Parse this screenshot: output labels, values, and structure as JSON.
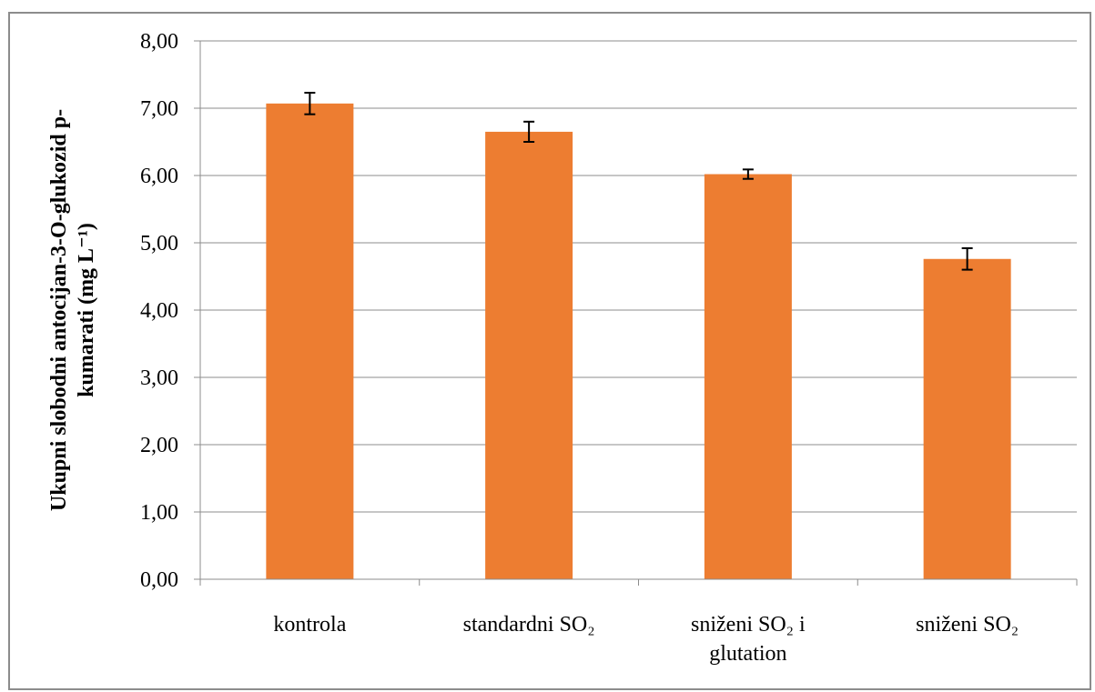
{
  "chart_data": {
    "type": "bar",
    "categories": [
      [
        "kontrola"
      ],
      [
        "standardni SO₂"
      ],
      [
        "sniženi SO₂ i",
        "glutation"
      ],
      [
        "sniženi SO₂"
      ]
    ],
    "values": [
      7.07,
      6.65,
      6.02,
      4.76
    ],
    "errors": [
      0.16,
      0.15,
      0.07,
      0.16
    ],
    "ylabel_lines": [
      "Ukupni slobodni antocijan-3-O-glukozid p-",
      "kumarati (mg L⁻¹)"
    ],
    "xlabel": "",
    "ylim": [
      0,
      8
    ],
    "yticks": [
      "0,00",
      "1,00",
      "2,00",
      "3,00",
      "4,00",
      "5,00",
      "6,00",
      "7,00",
      "8,00"
    ],
    "grid": true,
    "legend": "none",
    "bar_color": "#ed7d31",
    "grid_color": "#8c8c8c",
    "error_bar_color": "#000000"
  }
}
